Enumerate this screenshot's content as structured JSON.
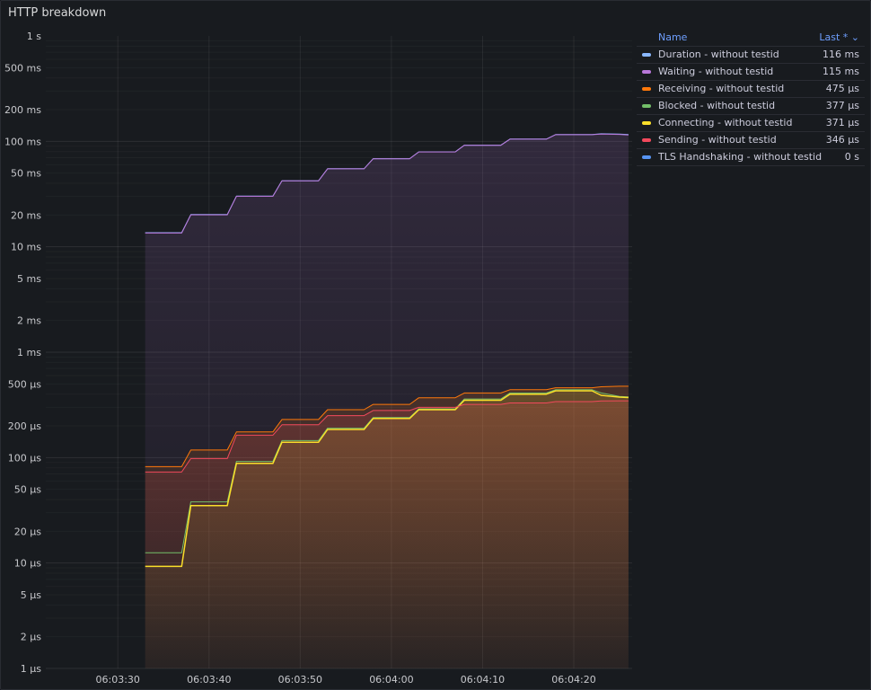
{
  "panel": {
    "title": "HTTP breakdown"
  },
  "legend": {
    "name_header": "Name",
    "last_header": "Last * ⌄",
    "items": [
      {
        "name": "Duration - without testid",
        "value": "116 ms",
        "color": "#8ab8ff"
      },
      {
        "name": "Waiting - without testid",
        "value": "115 ms",
        "color": "#b877d9"
      },
      {
        "name": "Receiving - without testid",
        "value": "475 µs",
        "color": "#ff780a"
      },
      {
        "name": "Blocked - without testid",
        "value": "377 µs",
        "color": "#73bf69"
      },
      {
        "name": "Connecting - without testid",
        "value": "371 µs",
        "color": "#fade2a"
      },
      {
        "name": "Sending - without testid",
        "value": "346 µs",
        "color": "#f2495c"
      },
      {
        "name": "TLS Handshaking - without testid",
        "value": "0 s",
        "color": "#5794f2"
      }
    ]
  },
  "chart_data": {
    "type": "line",
    "title": "HTTP breakdown",
    "y_scale": "log",
    "y_unit": "seconds",
    "ylim": [
      1e-06,
      1
    ],
    "grid": true,
    "legend_placement": "right",
    "y_ticks": [
      {
        "value": 1,
        "label": "1 s"
      },
      {
        "value": 0.5,
        "label": "500 ms"
      },
      {
        "value": 0.2,
        "label": "200 ms"
      },
      {
        "value": 0.1,
        "label": "100 ms"
      },
      {
        "value": 0.05,
        "label": "50 ms"
      },
      {
        "value": 0.02,
        "label": "20 ms"
      },
      {
        "value": 0.01,
        "label": "10 ms"
      },
      {
        "value": 0.005,
        "label": "5 ms"
      },
      {
        "value": 0.002,
        "label": "2 ms"
      },
      {
        "value": 0.001,
        "label": "1 ms"
      },
      {
        "value": 0.0005,
        "label": "500 µs"
      },
      {
        "value": 0.0002,
        "label": "200 µs"
      },
      {
        "value": 0.0001,
        "label": "100 µs"
      },
      {
        "value": 5e-05,
        "label": "50 µs"
      },
      {
        "value": 2e-05,
        "label": "20 µs"
      },
      {
        "value": 1e-05,
        "label": "10 µs"
      },
      {
        "value": 5e-06,
        "label": "5 µs"
      },
      {
        "value": 2e-06,
        "label": "2 µs"
      },
      {
        "value": 1e-06,
        "label": "1 µs"
      }
    ],
    "x_ticks": [
      "06:03:30",
      "06:03:40",
      "06:03:50",
      "06:04:00",
      "06:04:10",
      "06:04:20"
    ],
    "x_tick_seconds": [
      210,
      220,
      230,
      240,
      250,
      260
    ],
    "xlim_seconds": [
      202.1,
      266.4
    ],
    "x": [
      213,
      217,
      218,
      222,
      223,
      227,
      228,
      232,
      233,
      237,
      238,
      242,
      243,
      247,
      248,
      252,
      253,
      257,
      258,
      262,
      263,
      265,
      266
    ],
    "series": [
      {
        "name": "Duration - without testid",
        "color": "#8ab8ff",
        "fill": false,
        "width": 1,
        "values": [
          0.0136,
          0.0136,
          0.0202,
          0.0202,
          0.0302,
          0.0302,
          0.0423,
          0.0423,
          0.055,
          0.055,
          0.0685,
          0.0685,
          0.0795,
          0.0795,
          0.092,
          0.092,
          0.105,
          0.105,
          0.116,
          0.116,
          0.118,
          0.117,
          0.116
        ]
      },
      {
        "name": "Waiting - without testid",
        "color": "#b877d9",
        "fill": true,
        "width": 1,
        "values": [
          0.0135,
          0.0135,
          0.0201,
          0.0201,
          0.0301,
          0.0301,
          0.0422,
          0.0422,
          0.0549,
          0.0549,
          0.0684,
          0.0684,
          0.0794,
          0.0794,
          0.0918,
          0.0918,
          0.1048,
          0.1048,
          0.1158,
          0.1158,
          0.117,
          0.1165,
          0.115
        ]
      },
      {
        "name": "Receiving - without testid",
        "color": "#ff780a",
        "fill": true,
        "width": 1,
        "values": [
          8.2e-05,
          8.2e-05,
          0.000118,
          0.000118,
          0.000175,
          0.000175,
          0.00023,
          0.00023,
          0.000285,
          0.000285,
          0.00032,
          0.00032,
          0.00037,
          0.00037,
          0.00041,
          0.00041,
          0.00044,
          0.00044,
          0.00046,
          0.00046,
          0.00047,
          0.000475,
          0.000475
        ]
      },
      {
        "name": "Blocked - without testid",
        "color": "#73bf69",
        "fill": false,
        "width": 1,
        "values": [
          1.25e-05,
          1.25e-05,
          3.8e-05,
          3.8e-05,
          9.2e-05,
          9.2e-05,
          0.000145,
          0.000145,
          0.00019,
          0.00019,
          0.00024,
          0.00024,
          0.00029,
          0.00029,
          0.00036,
          0.00036,
          0.00041,
          0.00041,
          0.00044,
          0.00044,
          0.00041,
          0.00038,
          0.000377
        ]
      },
      {
        "name": "Connecting - without testid",
        "color": "#fade2a",
        "fill": true,
        "width": 1.5,
        "values": [
          9.3e-06,
          9.3e-06,
          3.5e-05,
          3.5e-05,
          8.8e-05,
          8.8e-05,
          0.00014,
          0.00014,
          0.000185,
          0.000185,
          0.000235,
          0.000235,
          0.000285,
          0.000285,
          0.00035,
          0.00035,
          0.0004,
          0.0004,
          0.00043,
          0.00043,
          0.00039,
          0.000375,
          0.000371
        ]
      },
      {
        "name": "Sending - without testid",
        "color": "#f2495c",
        "fill": true,
        "width": 1,
        "values": [
          7.3e-05,
          7.3e-05,
          9.8e-05,
          9.8e-05,
          0.000163,
          0.000163,
          0.000205,
          0.000205,
          0.00025,
          0.00025,
          0.00028,
          0.00028,
          0.0003,
          0.0003,
          0.00032,
          0.00032,
          0.00033,
          0.00033,
          0.00034,
          0.00034,
          0.000345,
          0.000346,
          0.000346
        ]
      },
      {
        "name": "TLS Handshaking - without testid",
        "color": "#5794f2",
        "fill": false,
        "width": 1,
        "values": [
          0,
          0,
          0,
          0,
          0,
          0,
          0,
          0,
          0,
          0,
          0,
          0,
          0,
          0,
          0,
          0,
          0,
          0,
          0,
          0,
          0,
          0,
          0
        ]
      }
    ]
  }
}
